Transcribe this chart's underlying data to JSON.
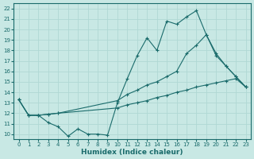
{
  "xlabel": "Humidex (Indice chaleur)",
  "bg_color": "#c8e8e4",
  "grid_color": "#b0d8d4",
  "line_color": "#1a6b6b",
  "xlim": [
    -0.5,
    23.5
  ],
  "ylim": [
    9.5,
    22.5
  ],
  "xticks": [
    0,
    1,
    2,
    3,
    4,
    5,
    6,
    7,
    8,
    9,
    10,
    11,
    12,
    13,
    14,
    15,
    16,
    17,
    18,
    19,
    20,
    21,
    22,
    23
  ],
  "yticks": [
    10,
    11,
    12,
    13,
    14,
    15,
    16,
    17,
    18,
    19,
    20,
    21,
    22
  ],
  "line1_x": [
    0,
    1,
    2,
    3,
    4,
    5,
    6,
    7,
    8,
    9,
    10,
    11,
    12,
    13,
    14,
    15,
    16,
    17,
    18,
    19,
    20,
    21,
    22,
    23
  ],
  "line1_y": [
    13.3,
    11.8,
    11.8,
    11.1,
    10.7,
    9.8,
    10.5,
    10.0,
    10.0,
    9.9,
    13.0,
    15.3,
    17.5,
    19.2,
    18.0,
    20.8,
    20.5,
    21.2,
    21.8,
    19.5,
    17.7,
    16.5,
    15.5,
    14.5
  ],
  "line2_x": [
    0,
    1,
    2,
    3,
    4,
    10,
    11,
    12,
    13,
    14,
    15,
    16,
    17,
    18,
    19,
    20,
    21,
    22,
    23
  ],
  "line2_y": [
    13.3,
    11.8,
    11.8,
    11.9,
    12.0,
    13.2,
    13.8,
    14.2,
    14.7,
    15.0,
    15.5,
    16.0,
    17.7,
    18.5,
    19.5,
    17.5,
    16.5,
    15.5,
    14.5
  ],
  "line3_x": [
    0,
    1,
    2,
    3,
    4,
    10,
    11,
    12,
    13,
    14,
    15,
    16,
    17,
    18,
    19,
    20,
    21,
    22,
    23
  ],
  "line3_y": [
    13.3,
    11.8,
    11.8,
    11.9,
    12.0,
    12.5,
    12.8,
    13.0,
    13.2,
    13.5,
    13.7,
    14.0,
    14.2,
    14.5,
    14.7,
    14.9,
    15.1,
    15.3,
    14.5
  ]
}
